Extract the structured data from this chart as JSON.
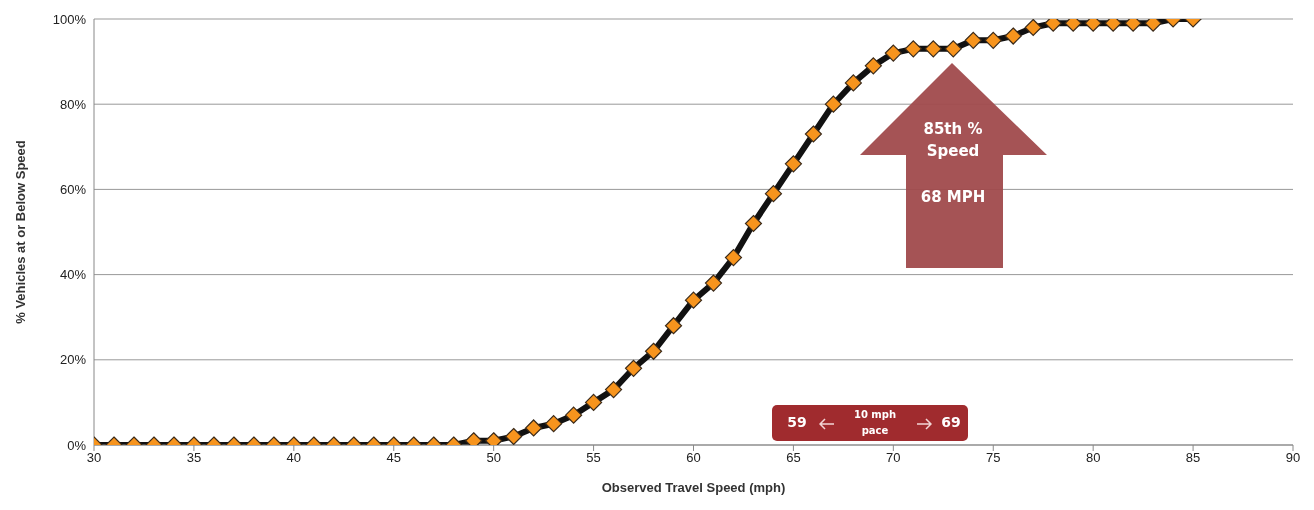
{
  "chart_data": {
    "type": "line",
    "xlabel": "Observed Travel Speed (mph)",
    "ylabel": "% Vehicles at or Below Speed",
    "x": [
      30,
      31,
      32,
      33,
      34,
      35,
      36,
      37,
      38,
      39,
      40,
      41,
      42,
      43,
      44,
      45,
      46,
      47,
      48,
      49,
      50,
      51,
      52,
      53,
      54,
      55,
      56,
      57,
      58,
      59,
      60,
      61,
      62,
      63,
      64,
      65,
      66,
      67,
      68,
      69,
      70,
      71,
      72,
      73,
      74,
      75,
      76,
      77,
      78,
      79,
      80,
      81,
      82,
      83,
      84,
      85
    ],
    "series": [
      {
        "color": "#f7941d",
        "values": [
          0,
          0,
          0,
          0,
          0,
          0,
          0,
          0,
          0,
          0,
          0,
          0,
          0,
          0,
          0,
          0,
          0,
          0,
          0,
          1,
          1,
          2,
          4,
          5,
          7,
          10,
          13,
          18,
          22,
          28,
          34,
          38,
          44,
          52,
          59,
          66,
          73,
          80,
          85,
          89,
          92,
          93,
          93,
          93,
          95,
          95,
          96,
          98,
          99,
          99,
          99,
          99,
          99,
          99,
          100,
          100
        ]
      }
    ],
    "xlim": [
      30,
      90
    ],
    "xticks": [
      30,
      35,
      40,
      45,
      50,
      55,
      60,
      65,
      70,
      75,
      80,
      85,
      90
    ],
    "ylim": [
      0,
      100
    ],
    "yticks": [
      {
        "value": 0,
        "label": "0%"
      },
      {
        "value": 20,
        "label": "20%"
      },
      {
        "value": 40,
        "label": "40%"
      },
      {
        "value": 60,
        "label": "60%"
      },
      {
        "value": 80,
        "label": "80%"
      },
      {
        "value": 100,
        "label": "100%"
      }
    ],
    "grid": "y",
    "legend": false,
    "marker": "diamond",
    "line_style": "solid",
    "annotations": [
      "85th % Speed",
      "68 MPH",
      "59",
      "10 mph pace",
      "69"
    ]
  }
}
